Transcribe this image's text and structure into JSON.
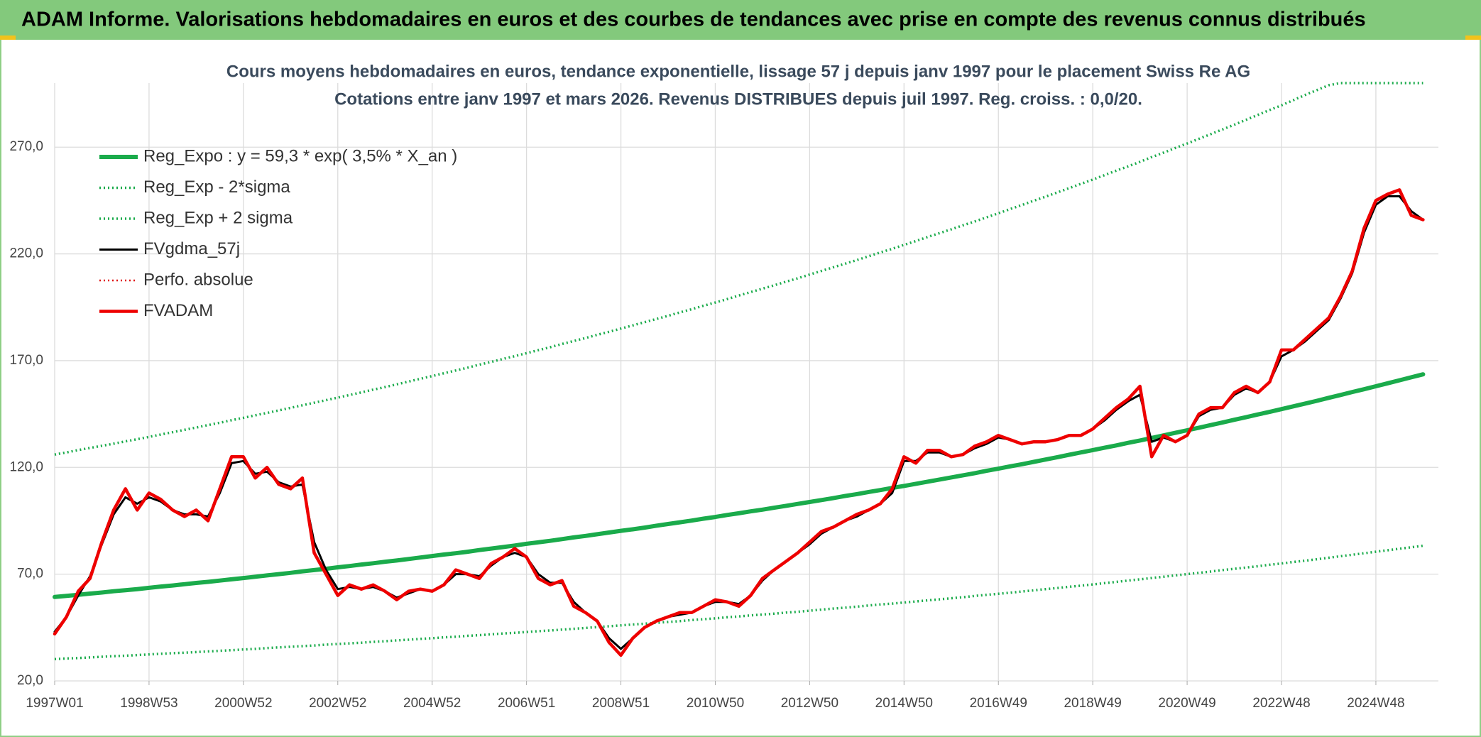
{
  "header": {
    "title": "ADAM Informe. Valorisations hebdomadaires en euros et des courbes de tendances avec prise en compte des revenus connus distribués"
  },
  "chart_data": {
    "type": "line",
    "title": "Cours moyens hebdomadaires en euros, tendance exponentielle, lissage 57 j depuis janv 1997 pour le placement Swiss Re AG",
    "subtitle": "Cotations entre janv 1997 et mars 2026. Revenus DISTRIBUES depuis juil 1997. Reg. croiss. : 0,0/20.",
    "categories": [
      "1997W01",
      null,
      null,
      null,
      null,
      null,
      null,
      null,
      "1998W53",
      null,
      null,
      null,
      null,
      null,
      null,
      null,
      "2000W52",
      null,
      null,
      null,
      null,
      null,
      null,
      null,
      "2002W52",
      null,
      null,
      null,
      null,
      null,
      null,
      null,
      "2004W52",
      null,
      null,
      null,
      null,
      null,
      null,
      null,
      "2006W51",
      null,
      null,
      null,
      null,
      null,
      null,
      null,
      "2008W51",
      null,
      null,
      null,
      null,
      null,
      null,
      null,
      "2010W50",
      null,
      null,
      null,
      null,
      null,
      null,
      null,
      "2012W50",
      null,
      null,
      null,
      null,
      null,
      null,
      null,
      "2014W50",
      null,
      null,
      null,
      null,
      null,
      null,
      null,
      "2016W49",
      null,
      null,
      null,
      null,
      null,
      null,
      null,
      "2018W49",
      null,
      null,
      null,
      null,
      null,
      null,
      null,
      "2020W49",
      null,
      null,
      null,
      null,
      null,
      null,
      null,
      "2022W48",
      null,
      null,
      null,
      null,
      null,
      null,
      null,
      "2024W48",
      null,
      null,
      null,
      null
    ],
    "ylim": [
      20,
      300
    ],
    "yticks": [
      {
        "value": 20,
        "label": "20,0"
      },
      {
        "value": 70,
        "label": "70,0"
      },
      {
        "value": 120,
        "label": "120,0"
      },
      {
        "value": 170,
        "label": "170,0"
      },
      {
        "value": 220,
        "label": "220,0"
      },
      {
        "value": 270,
        "label": "270,0"
      }
    ],
    "grid": true,
    "legend": "upper left",
    "series": [
      {
        "name": "Reg_Expo : y = 59,3 * exp( 3,5% *  X_an )",
        "color": "#1aab4b",
        "style": "solid",
        "width": 6,
        "values": [
          59.3,
          59.8,
          60.3,
          60.9,
          61.4,
          62.0,
          62.5,
          63.0,
          63.6,
          64.2,
          64.7,
          65.3,
          65.9,
          66.4,
          67.0,
          67.6,
          68.2,
          68.8,
          69.4,
          70.0,
          70.6,
          71.3,
          71.9,
          72.5,
          73.2,
          73.8,
          74.5,
          75.1,
          75.8,
          76.4,
          77.1,
          77.8,
          78.5,
          79.2,
          79.8,
          80.5,
          81.3,
          82.0,
          82.7,
          83.4,
          84.2,
          84.9,
          85.6,
          86.4,
          87.2,
          87.9,
          88.7,
          89.5,
          90.3,
          91.0,
          91.8,
          92.7,
          93.5,
          94.3,
          95.1,
          96.0,
          96.8,
          97.7,
          98.5,
          99.4,
          100.2,
          101.1,
          102.0,
          102.9,
          103.8,
          104.7,
          105.6,
          106.6,
          107.5,
          108.5,
          109.4,
          110.4,
          111.3,
          112.3,
          113.3,
          114.3,
          115.3,
          116.3,
          117.3,
          118.4,
          119.4,
          120.5,
          121.5,
          122.6,
          123.7,
          124.8,
          125.9,
          127.0,
          128.1,
          129.2,
          130.3,
          131.5,
          132.6,
          133.8,
          135.0,
          136.2,
          137.4,
          138.6,
          139.8,
          141.0,
          142.3,
          143.5,
          144.8,
          146.0,
          147.3,
          148.6,
          149.9,
          151.2,
          152.6,
          153.9,
          155.3,
          156.6,
          158.0,
          159.4,
          160.8,
          162.2,
          163.6
        ]
      },
      {
        "name": "Reg_Exp - 2*sigma",
        "color": "#1aab4b",
        "style": "dotted",
        "width": 3.5,
        "values": [
          30.2,
          30.5,
          30.7,
          31.0,
          31.3,
          31.6,
          31.8,
          32.1,
          32.4,
          32.7,
          33.0,
          33.2,
          33.5,
          33.8,
          34.1,
          34.4,
          34.7,
          35.0,
          35.4,
          35.7,
          36.0,
          36.3,
          36.6,
          37.0,
          37.3,
          37.6,
          37.9,
          38.3,
          38.6,
          39.0,
          39.3,
          39.7,
          40.0,
          40.4,
          40.7,
          41.1,
          41.4,
          41.8,
          42.2,
          42.5,
          42.9,
          43.3,
          43.6,
          44.0,
          44.4,
          44.8,
          45.2,
          45.6,
          46.0,
          46.4,
          46.8,
          47.2,
          47.6,
          48.0,
          48.5,
          48.9,
          49.3,
          49.8,
          50.2,
          50.7,
          51.1,
          51.5,
          52.0,
          52.4,
          52.9,
          53.4,
          53.9,
          54.3,
          54.8,
          55.3,
          55.8,
          56.2,
          56.7,
          57.2,
          57.7,
          58.2,
          58.7,
          59.2,
          59.8,
          60.3,
          60.8,
          61.3,
          61.9,
          62.4,
          63.0,
          63.5,
          64.1,
          64.6,
          65.2,
          65.8,
          66.4,
          67.0,
          67.6,
          68.2,
          68.8,
          69.4,
          70.0,
          70.6,
          71.2,
          71.9,
          72.5,
          73.1,
          73.7,
          74.4,
          75.0,
          75.7,
          76.3,
          77.0,
          77.7,
          78.4,
          79.1,
          79.8,
          80.5,
          81.2,
          81.9,
          82.6,
          83.3
        ]
      },
      {
        "name": "Reg_Exp + 2 sigma",
        "color": "#1aab4b",
        "style": "dotted",
        "width": 3.5,
        "values": [
          126.0,
          127.0,
          128.1,
          129.1,
          130.1,
          131.1,
          132.2,
          133.2,
          134.3,
          135.4,
          136.5,
          137.6,
          138.7,
          139.8,
          140.9,
          142.1,
          143.2,
          144.4,
          145.5,
          146.7,
          147.9,
          149.1,
          150.3,
          151.5,
          152.7,
          153.9,
          155.1,
          156.4,
          157.6,
          158.9,
          160.2,
          161.5,
          162.8,
          164.1,
          165.4,
          166.7,
          168.1,
          169.4,
          170.8,
          172.1,
          173.5,
          174.9,
          176.3,
          177.8,
          179.2,
          180.6,
          182.1,
          183.5,
          185.0,
          186.5,
          188.0,
          189.5,
          191.0,
          192.6,
          194.1,
          195.7,
          197.2,
          198.8,
          200.5,
          202.1,
          203.7,
          205.3,
          207.0,
          208.6,
          210.3,
          212.0,
          213.7,
          215.4,
          217.1,
          218.9,
          220.7,
          222.4,
          224.2,
          226.0,
          227.9,
          229.7,
          231.5,
          233.4,
          235.2,
          237.1,
          239.0,
          241.0,
          242.9,
          244.9,
          246.8,
          248.8,
          250.8,
          252.8,
          254.8,
          256.9,
          259.0,
          261.0,
          263.1,
          265.3,
          267.4,
          269.6,
          271.7,
          273.9,
          276.1,
          278.3,
          280.5,
          282.8,
          285.1,
          287.4,
          289.6,
          292.0,
          294.4,
          296.7,
          299.0,
          300,
          300,
          300,
          300,
          300,
          300,
          300,
          300
        ]
      },
      {
        "name": "FVgdma_57j",
        "color": "#000000",
        "style": "solid",
        "width": 3,
        "values": [
          43,
          50,
          60,
          69,
          84,
          98,
          106,
          103,
          106,
          104,
          100,
          98,
          98,
          97,
          108,
          122,
          123,
          117,
          118,
          113,
          111,
          112,
          85,
          72,
          63,
          64,
          63,
          64,
          62,
          59,
          61,
          63,
          62,
          65,
          70,
          70,
          69,
          74,
          78,
          80,
          78,
          70,
          66,
          66,
          57,
          52,
          48,
          40,
          35,
          40,
          45,
          48,
          50,
          51,
          52,
          55,
          57,
          57,
          56,
          60,
          67,
          72,
          76,
          80,
          84,
          89,
          92,
          95,
          97,
          100,
          103,
          108,
          123,
          123,
          127,
          127,
          125,
          126,
          129,
          131,
          134,
          133,
          131,
          132,
          132,
          133,
          135,
          135,
          138,
          142,
          147,
          151,
          154,
          132,
          134,
          132,
          135,
          144,
          147,
          148,
          154,
          157,
          155,
          160,
          172,
          175,
          179,
          184,
          189,
          199,
          211,
          230,
          243,
          247,
          247,
          240,
          236
        ]
      },
      {
        "name": "Perfo. absolue",
        "color": "#e00000",
        "style": "dotted",
        "width": 2.5,
        "values": [
          null,
          null,
          null,
          null,
          null,
          null,
          null,
          null,
          null,
          null,
          null,
          null,
          null,
          null,
          null,
          null,
          null,
          null,
          null,
          null,
          null,
          null,
          null,
          null,
          null,
          null,
          null,
          null,
          null,
          null,
          null,
          null,
          null,
          null,
          null,
          null,
          null,
          null,
          null,
          null,
          null,
          null,
          null,
          null,
          null,
          null,
          null,
          null,
          null,
          null,
          null,
          null,
          null,
          null,
          null,
          null,
          null,
          null,
          null,
          null,
          null,
          null,
          null,
          null,
          null,
          null,
          null,
          null,
          null,
          null,
          null,
          null,
          null,
          null,
          null,
          null,
          null,
          null,
          null,
          null,
          null,
          null,
          null,
          null,
          null,
          null,
          null,
          null,
          null,
          null,
          null,
          null,
          null,
          null,
          null,
          null,
          null,
          null,
          null,
          null,
          null,
          null,
          null,
          null,
          null,
          null,
          null,
          null,
          null,
          null,
          null,
          null,
          null,
          null,
          null,
          null,
          null
        ]
      },
      {
        "name": "FVADAM",
        "color": "#ee0000",
        "style": "solid",
        "width": 4.5,
        "values": [
          42,
          50,
          62,
          68,
          85,
          100,
          110,
          100,
          108,
          105,
          100,
          97,
          100,
          95,
          110,
          125,
          125,
          115,
          120,
          112,
          110,
          115,
          80,
          70,
          60,
          65,
          63,
          65,
          62,
          58,
          62,
          63,
          62,
          65,
          72,
          70,
          68,
          75,
          78,
          82,
          78,
          68,
          65,
          67,
          55,
          52,
          48,
          38,
          32,
          40,
          45,
          48,
          50,
          52,
          52,
          55,
          58,
          57,
          55,
          60,
          68,
          72,
          76,
          80,
          85,
          90,
          92,
          95,
          98,
          100,
          103,
          110,
          125,
          122,
          128,
          128,
          125,
          126,
          130,
          132,
          135,
          133,
          131,
          132,
          132,
          133,
          135,
          135,
          138,
          143,
          148,
          152,
          158,
          125,
          135,
          132,
          135,
          145,
          148,
          148,
          155,
          158,
          155,
          160,
          175,
          175,
          180,
          185,
          190,
          200,
          212,
          232,
          245,
          248,
          250,
          238,
          236
        ]
      }
    ]
  }
}
